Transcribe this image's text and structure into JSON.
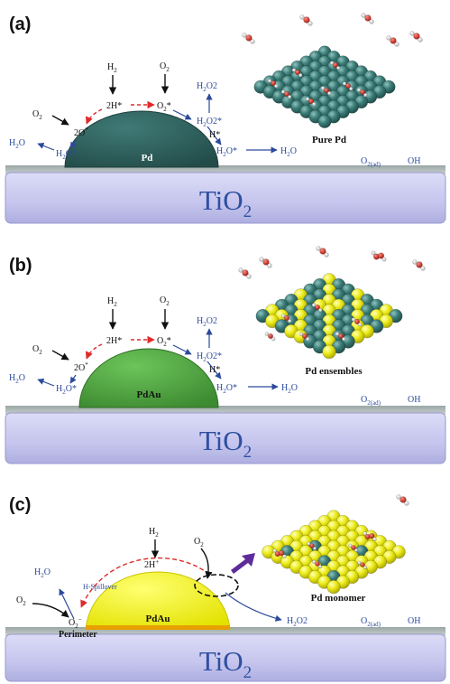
{
  "colors": {
    "species_text": "#2b4a9c",
    "tio2_fill": "#c9c9ef",
    "tio2_text": "#2f4fa0",
    "pd_particle": "#2d5f5c",
    "pdau_particle_b": "#4a9a3c",
    "pdau_particle_c": "#f2f20a",
    "pd_atom": "#3c7d78",
    "au_atom": "#ecec1a",
    "oxygen_atom": "#c8201c",
    "h_atom": "#f5f5f5",
    "red_dash": "#e02a2a",
    "monomer_arrow": "#5e2b9a"
  },
  "panels": [
    {
      "label": "(a)",
      "substrate": {
        "main": "TiO",
        "sub": "2"
      },
      "particle": "Pd",
      "surface_caption": "Pure Pd",
      "species": {
        "h2": {
          "main": "H",
          "sub": "2",
          "sup": ""
        },
        "o2": {
          "main": "O",
          "sub": "2",
          "sup": ""
        },
        "two_h_star": {
          "main": "2H*",
          "sub": "",
          "sup": ""
        },
        "o2_star": {
          "main": "O",
          "sub": "2",
          "sup": "*"
        },
        "o2_left": {
          "main": "O",
          "sub": "2",
          "sup": ""
        },
        "two_o_star": {
          "main": "2O",
          "sub": "",
          "sup": "*"
        },
        "h2o_far": {
          "main": "H",
          "sub": "2",
          "sup": "O"
        },
        "h2o_star_left": {
          "main": "H",
          "sub": "2",
          "sup": "O*"
        },
        "h2o2_top": {
          "main": "H",
          "sub": "2",
          "sup": "O2"
        },
        "h2o2_star": {
          "main": "H",
          "sub": "2",
          "sup": "O2*"
        },
        "h_star": {
          "main": "H*",
          "sub": "",
          "sup": ""
        },
        "h2o_star_right": {
          "main": "H",
          "sub": "2",
          "sup": "O*"
        },
        "h2o_out": {
          "main": "H",
          "sub": "2",
          "sup": "O"
        },
        "o2ad": {
          "main": "O",
          "sub": "2(ad)",
          "sup": ""
        },
        "oh": {
          "main": "OH",
          "sub": "",
          "sup": ""
        }
      }
    },
    {
      "label": "(b)",
      "substrate": {
        "main": "TiO",
        "sub": "2"
      },
      "particle": "PdAu",
      "surface_caption": "Pd ensembles",
      "species": {
        "h2": {
          "main": "H",
          "sub": "2",
          "sup": ""
        },
        "o2": {
          "main": "O",
          "sub": "2",
          "sup": ""
        },
        "two_h_star": {
          "main": "2H*",
          "sub": "",
          "sup": ""
        },
        "o2_star": {
          "main": "O",
          "sub": "2",
          "sup": "*"
        },
        "o2_left": {
          "main": "O",
          "sub": "2",
          "sup": ""
        },
        "two_o_star": {
          "main": "2O",
          "sub": "",
          "sup": "*"
        },
        "h2o_far": {
          "main": "H",
          "sub": "2",
          "sup": "O"
        },
        "h2o_star_left": {
          "main": "H",
          "sub": "2",
          "sup": "O*"
        },
        "h2o2_top": {
          "main": "H",
          "sub": "2",
          "sup": "O2"
        },
        "h2o2_star": {
          "main": "H",
          "sub": "2",
          "sup": "O2*"
        },
        "h_star": {
          "main": "H*",
          "sub": "",
          "sup": ""
        },
        "h2o_star_right": {
          "main": "H",
          "sub": "2",
          "sup": "O*"
        },
        "h2o_out": {
          "main": "H",
          "sub": "2",
          "sup": "O"
        },
        "o2ad": {
          "main": "O",
          "sub": "2(ad)",
          "sup": ""
        },
        "oh": {
          "main": "OH",
          "sub": "",
          "sup": ""
        }
      }
    },
    {
      "label": "(c)",
      "substrate": {
        "main": "TiO",
        "sub": "2"
      },
      "particle": "PdAu",
      "surface_caption": "Pd monomer",
      "perimeter": "Perimeter",
      "spillover": "H-Spillover",
      "species": {
        "h2": {
          "main": "H",
          "sub": "2",
          "sup": ""
        },
        "two_h_plus": {
          "main": "2H",
          "sub": "",
          "sup": "+"
        },
        "h2o": {
          "main": "H",
          "sub": "2",
          "sup": "O"
        },
        "o2_left": {
          "main": "O",
          "sub": "2",
          "sup": ""
        },
        "o2_minus": {
          "main": "O",
          "sub": "2",
          "sup": "−"
        },
        "o2_right": {
          "main": "O",
          "sub": "2",
          "sup": ""
        },
        "h2o2": {
          "main": "H",
          "sub": "2",
          "sup": "O2"
        },
        "o2ad": {
          "main": "O",
          "sub": "2(ad)",
          "sup": ""
        },
        "oh": {
          "main": "OH",
          "sub": "",
          "sup": ""
        }
      }
    }
  ]
}
